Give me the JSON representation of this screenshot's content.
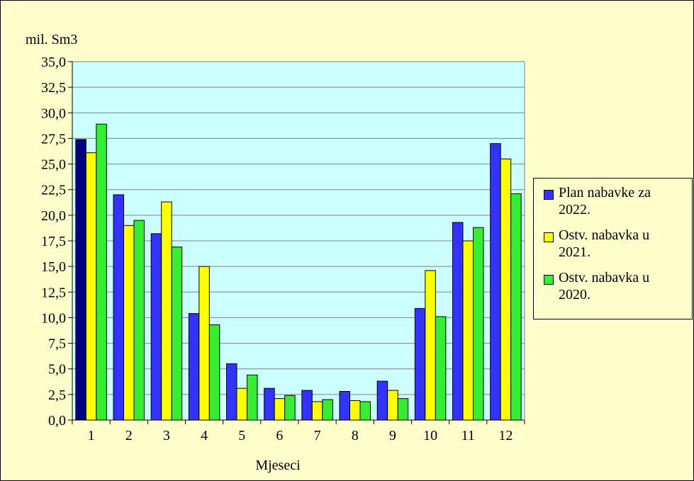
{
  "chart_data": {
    "type": "bar",
    "ylabel": "mil. Sm3",
    "xlabel": "Mjeseci",
    "ylim": [
      0,
      35
    ],
    "y_ticks": [
      "0,0",
      "2,5",
      "5,0",
      "7,5",
      "10,0",
      "12,5",
      "15,0",
      "17,5",
      "20,0",
      "22,5",
      "25,0",
      "27,5",
      "30,0",
      "32,5",
      "35,0"
    ],
    "categories": [
      "1",
      "2",
      "3",
      "4",
      "5",
      "6",
      "7",
      "8",
      "9",
      "10",
      "11",
      "12"
    ],
    "grid": "horizontal",
    "legend_position": "right",
    "series": [
      {
        "name": "Plan nabavke za 2022.",
        "name_lines": [
          "Plan nabavke za",
          "2022."
        ],
        "color": "#3333ff",
        "values": [
          27.4,
          22.0,
          18.2,
          10.4,
          5.5,
          3.1,
          2.9,
          2.8,
          3.8,
          10.9,
          19.3,
          27.0
        ]
      },
      {
        "name": "Ostv. nabavka u 2021.",
        "name_lines": [
          "Ostv. nabavka u",
          "2021."
        ],
        "color": "#ffff00",
        "values": [
          26.1,
          19.0,
          21.3,
          15.0,
          3.1,
          2.1,
          1.8,
          1.9,
          2.9,
          14.6,
          17.5,
          25.5
        ]
      },
      {
        "name": "Ostv. nabavka u 2020.",
        "name_lines": [
          "Ostv. nabavka u",
          "2020."
        ],
        "color": "#33ee33",
        "values": [
          28.9,
          19.5,
          16.9,
          9.3,
          4.4,
          2.4,
          2.0,
          1.8,
          2.1,
          10.1,
          18.8,
          22.1
        ]
      }
    ],
    "colors": {
      "plot_area": "#ccffff",
      "chart_area": "#ffffcc",
      "first_group_highlight": "#000080"
    }
  }
}
